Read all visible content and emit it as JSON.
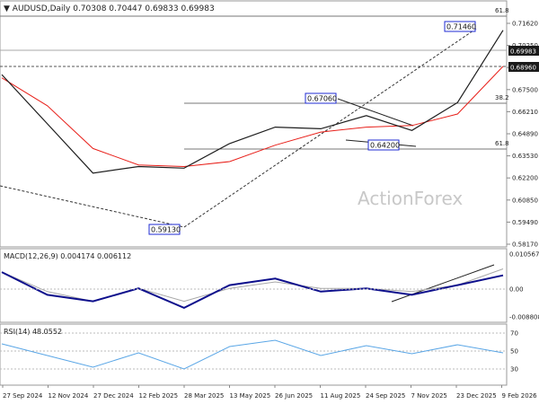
{
  "header": {
    "symbol": "AUDUSD,Daily",
    "ohlc": "0.70308 0.70447 0.69833 0.69983"
  },
  "watermark": "ActionForex",
  "colors": {
    "price_line": "#1e1e1e",
    "ma_line": "#e8201a",
    "macd_line": "#0d0f8c",
    "signal_line": "#a8a8a8",
    "rsi_line": "#5aa6e6",
    "label_box": "#1f2bd3",
    "badge_dark": "#1a1a1a"
  },
  "price_axis": {
    "ticks": [
      "0.71620",
      "0.70250",
      "0.68880",
      "0.67500",
      "0.66210",
      "0.64890",
      "0.63530",
      "0.62200",
      "0.60850",
      "0.59490",
      "0.58170"
    ],
    "badges": [
      "0.69983",
      "0.68960"
    ]
  },
  "macd_axis": {
    "ticks": [
      "0.010567",
      "0.00",
      "-0.008808"
    ]
  },
  "rsi_axis": {
    "ticks": [
      "70",
      "50",
      "30"
    ]
  },
  "x_axis": {
    "labels": [
      "27 Sep 2024",
      "12 Nov 2024",
      "27 Dec 2024",
      "12 Feb 2025",
      "28 Mar 2025",
      "13 May 2025",
      "26 Jun 2025",
      "11 Aug 2025",
      "24 Sep 2025",
      "7 Nov 2025",
      "23 Dec 2025",
      "9 Feb 2026"
    ]
  },
  "annotations": {
    "fib_618_top": "61.8",
    "fib_382": "38.2",
    "fib_618_bottom": "61.8",
    "high_label": "0.71460",
    "mid_high_label": "0.67060",
    "low_label": "0.59130",
    "mid_low_label": "0.64200"
  },
  "chart_data": [
    {
      "type": "line",
      "title": "AUDUSD,Daily",
      "x": [
        "27 Sep 2024",
        "12 Nov 2024",
        "27 Dec 2024",
        "12 Feb 2025",
        "28 Mar 2025",
        "13 May 2025",
        "26 Jun 2025",
        "11 Aug 2025",
        "24 Sep 2025",
        "7 Nov 2025",
        "23 Dec 2025",
        "9 Feb 2026"
      ],
      "series": [
        {
          "values": [
            0.685,
            0.655,
            0.625,
            0.629,
            0.628,
            0.643,
            0.653,
            0.652,
            0.66,
            0.651,
            0.668,
            0.712
          ]
        },
        {
          "values": [
            0.683,
            0.666,
            0.64,
            0.63,
            0.629,
            0.632,
            0.642,
            0.65,
            0.653,
            0.654,
            0.661,
            0.69
          ]
        }
      ],
      "ylim": [
        0.5817,
        0.7162
      ],
      "annotations": [
        "0.71460",
        "0.67060",
        "0.59130",
        "0.64200",
        "61.8",
        "38.2"
      ],
      "current_values": [
        "0.69983",
        "0.68960"
      ]
    },
    {
      "type": "line",
      "title": "MACD(12,26,9) 0.004174 0.006112",
      "x": [
        "27 Sep 2024",
        "12 Nov 2024",
        "27 Dec 2024",
        "12 Feb 2025",
        "28 Mar 2025",
        "13 May 2025",
        "26 Jun 2025",
        "11 Aug 2025",
        "24 Sep 2025",
        "7 Nov 2025",
        "23 Dec 2025",
        "9 Feb 2026"
      ],
      "series": [
        {
          "values": [
            0.005,
            -0.002,
            -0.004,
            0.0,
            -0.006,
            0.001,
            0.003,
            -0.001,
            0.0,
            -0.002,
            0.001,
            0.004
          ]
        },
        {
          "values": [
            0.005,
            -0.001,
            -0.004,
            0.0,
            -0.004,
            0.0,
            0.002,
            0.0,
            0.0,
            -0.001,
            0.001,
            0.006
          ]
        }
      ],
      "ylim": [
        -0.008808,
        0.010567
      ]
    },
    {
      "type": "line",
      "title": "RSI(14) 48.0552",
      "x": [
        "27 Sep 2024",
        "12 Nov 2024",
        "27 Dec 2024",
        "12 Feb 2025",
        "28 Mar 2025",
        "13 May 2025",
        "26 Jun 2025",
        "11 Aug 2025",
        "24 Sep 2025",
        "7 Nov 2025",
        "23 Dec 2025",
        "9 Feb 2026"
      ],
      "series": [
        {
          "values": [
            58,
            45,
            32,
            48,
            30,
            55,
            62,
            45,
            56,
            47,
            57,
            48
          ]
        }
      ],
      "ylim": [
        0,
        100
      ],
      "levels": [
        70,
        50,
        30
      ]
    }
  ]
}
